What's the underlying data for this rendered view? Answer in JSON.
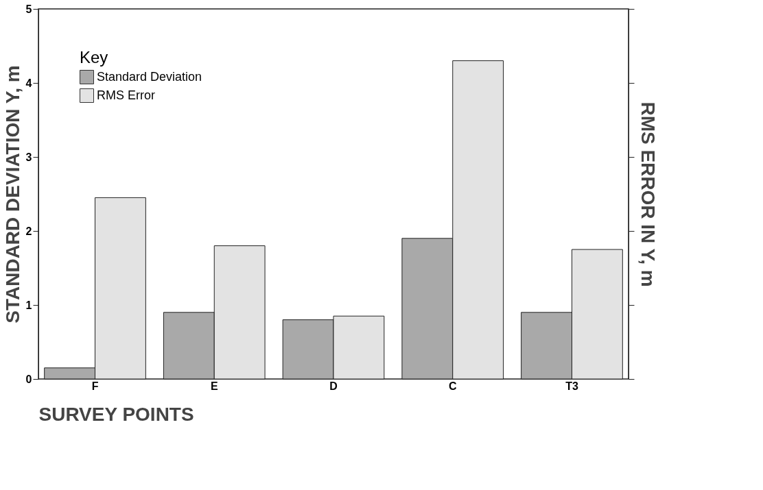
{
  "chart_data": {
    "type": "bar",
    "xlabel": "SURVEY POINTS",
    "ylabel": "STANDARD DEVIATION Y, m",
    "y2label": "RMS ERROR IN Y, m",
    "legend_title": "Key",
    "legend": "top left",
    "grid": false,
    "categories": [
      "F",
      "E",
      "D",
      "C",
      "T3"
    ],
    "ylim": [
      0,
      5
    ],
    "yticks": [
      0,
      1,
      2,
      3,
      4,
      5
    ],
    "series": [
      {
        "name": "Standard Deviation",
        "color": "#a9a9a9",
        "values": [
          0.15,
          0.9,
          0.8,
          1.9,
          0.9
        ]
      },
      {
        "name": "RMS Error",
        "color": "#e3e3e3",
        "values": [
          2.45,
          1.8,
          0.85,
          4.3,
          1.75
        ]
      }
    ]
  }
}
